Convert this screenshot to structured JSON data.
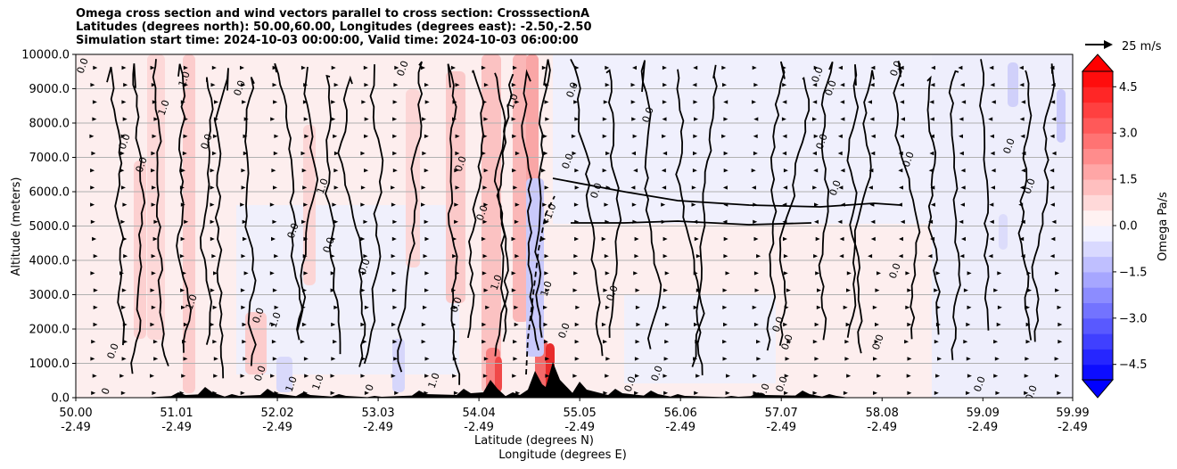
{
  "header": {
    "title_line1": "Omega cross section and wind vectors parallel to cross section: CrosssectionA",
    "title_line2": "Latitudes (degrees north): 50.00,60.00, Longitudes (degrees east): -2.50,-2.50",
    "title_line3": "Simulation start time: 2024-10-03 00:00:00, Valid time: 2024-10-03 06:00:00"
  },
  "chart_data": {
    "type": "heatmap",
    "ylabel": "Altitude (meters)",
    "xlabel_line1": "Latitude (degrees N)",
    "xlabel_line2": "Longitude (degrees E)",
    "ylim": [
      0,
      10000
    ],
    "xlim": [
      50.0,
      59.99
    ],
    "grid": "horizontal",
    "y_ticks": [
      {
        "v": 0,
        "label": "0.0"
      },
      {
        "v": 1000,
        "label": "1000.0"
      },
      {
        "v": 2000,
        "label": "2000.0"
      },
      {
        "v": 3000,
        "label": "3000.0"
      },
      {
        "v": 4000,
        "label": "4000.0"
      },
      {
        "v": 5000,
        "label": "5000.0"
      },
      {
        "v": 6000,
        "label": "6000.0"
      },
      {
        "v": 7000,
        "label": "7000.0"
      },
      {
        "v": 8000,
        "label": "8000.0"
      },
      {
        "v": 9000,
        "label": "9000.0"
      },
      {
        "v": 10000,
        "label": "10000.0"
      }
    ],
    "x_ticks": [
      {
        "v": 50.0,
        "lat": "50.00",
        "lon": "-2.49"
      },
      {
        "v": 51.01,
        "lat": "51.01",
        "lon": "-2.49"
      },
      {
        "v": 52.02,
        "lat": "52.02",
        "lon": "-2.49"
      },
      {
        "v": 53.03,
        "lat": "53.03",
        "lon": "-2.49"
      },
      {
        "v": 54.04,
        "lat": "54.04",
        "lon": "-2.49"
      },
      {
        "v": 55.05,
        "lat": "55.05",
        "lon": "-2.49"
      },
      {
        "v": 56.06,
        "lat": "56.06",
        "lon": "-2.49"
      },
      {
        "v": 57.07,
        "lat": "57.07",
        "lon": "-2.49"
      },
      {
        "v": 58.08,
        "lat": "58.08",
        "lon": "-2.49"
      },
      {
        "v": 59.09,
        "lat": "59.09",
        "lon": "-2.49"
      },
      {
        "v": 59.99,
        "lat": "59.99",
        "lon": "-2.49"
      }
    ],
    "colorbar": {
      "label": "Omega Pa/s",
      "range": [
        -5.0,
        5.0
      ],
      "extend": "both",
      "ticks": [
        {
          "v": 4.5,
          "label": "4.5"
        },
        {
          "v": 3.0,
          "label": "3.0"
        },
        {
          "v": 1.5,
          "label": "1.5"
        },
        {
          "v": 0.0,
          "label": "0.0"
        },
        {
          "v": -1.5,
          "label": "−1.5"
        },
        {
          "v": -3.0,
          "label": "−3.0"
        },
        {
          "v": -4.5,
          "label": "−4.5"
        }
      ]
    },
    "quiver_key": {
      "label": "25 m/s",
      "value_ms": 25
    },
    "contour_labels": [
      "0.0",
      "1.0",
      "-1.0"
    ],
    "colors": {
      "positive": "#ff0000",
      "negative": "#0000ff",
      "near_zero": "#ffffff",
      "contour": "#000000",
      "terrain": "#000000"
    }
  }
}
